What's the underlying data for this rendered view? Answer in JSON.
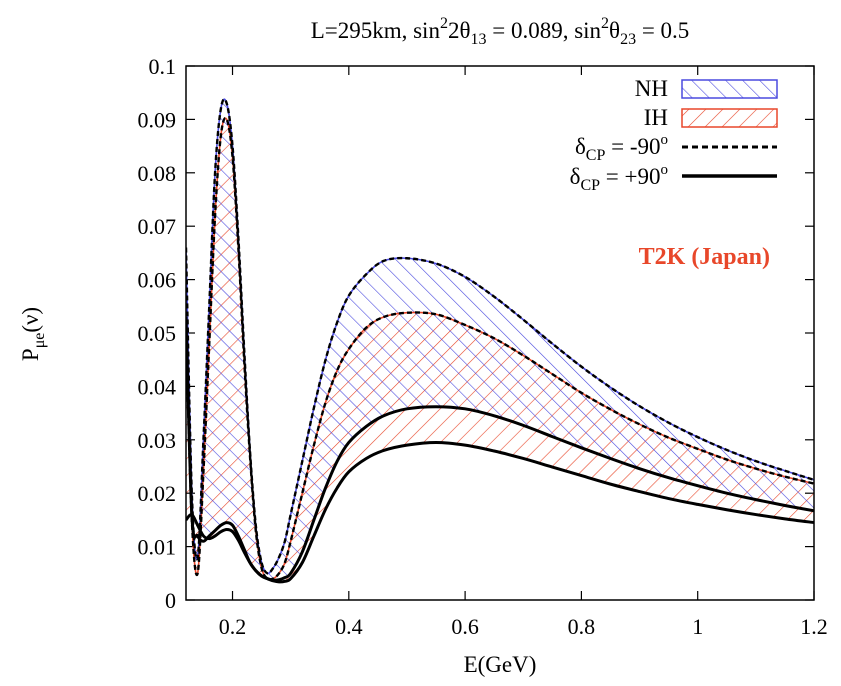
{
  "chart_data": {
    "type": "line",
    "title": {
      "prefix": "L=295km, sin",
      "sup1": "2",
      "part2": "2θ",
      "sub1": "13",
      "part3": " = 0.089, sin",
      "sup2": "2",
      "part4": "θ",
      "sub2": "23",
      "part5": " = 0.5"
    },
    "xlabel": "E(GeV)",
    "ylabel": {
      "main": "P",
      "sub": "μe",
      "suffix": "(ν)"
    },
    "xlim": [
      0.12,
      1.2
    ],
    "ylim": [
      0,
      0.1
    ],
    "xticks": [
      "0.2",
      "0.4",
      "0.6",
      "0.8",
      "1",
      "1.2"
    ],
    "yticks": [
      "0",
      "0.01",
      "0.02",
      "0.03",
      "0.04",
      "0.05",
      "0.06",
      "0.07",
      "0.08",
      "0.09",
      "0.1"
    ],
    "annotation": {
      "text": "T2K (Japan)",
      "color": "#e8472a"
    },
    "colors": {
      "NH": "#4a4adf",
      "IH": "#e8472a",
      "dashed": "#000000",
      "solid": "#000000"
    },
    "legend": {
      "position": "top-right",
      "entries": [
        {
          "label": "NH",
          "style": "hatch-NH"
        },
        {
          "label": "IH",
          "style": "hatch-IH"
        },
        {
          "label_main": "δ",
          "label_sub": "CP",
          "label_rest": " = -90",
          "label_sup": "o",
          "style": "dashed"
        },
        {
          "label_main": "δ",
          "label_sub": "CP",
          "label_rest": " = +90",
          "label_sup": "o",
          "style": "solid"
        }
      ]
    },
    "x": [
      0.12,
      0.13,
      0.14,
      0.15,
      0.16,
      0.17,
      0.18,
      0.19,
      0.2,
      0.21,
      0.22,
      0.23,
      0.24,
      0.25,
      0.26,
      0.27,
      0.28,
      0.29,
      0.3,
      0.32,
      0.34,
      0.36,
      0.38,
      0.4,
      0.43,
      0.46,
      0.5,
      0.55,
      0.6,
      0.65,
      0.7,
      0.75,
      0.8,
      0.85,
      0.9,
      0.95,
      1.0,
      1.05,
      1.1,
      1.15,
      1.2
    ],
    "series": [
      {
        "name": "NH, δCP = -90°",
        "band": "NH",
        "line": "dashed",
        "values": [
          0.066,
          0.02,
          0.008,
          0.03,
          0.055,
          0.08,
          0.092,
          0.093,
          0.085,
          0.068,
          0.047,
          0.028,
          0.014,
          0.007,
          0.005,
          0.006,
          0.008,
          0.011,
          0.016,
          0.026,
          0.036,
          0.045,
          0.052,
          0.057,
          0.061,
          0.0635,
          0.064,
          0.063,
          0.0605,
          0.0568,
          0.0525,
          0.048,
          0.0437,
          0.0398,
          0.0363,
          0.0332,
          0.0305,
          0.0281,
          0.026,
          0.0242,
          0.0225
        ]
      },
      {
        "name": "IH, δCP = -90°",
        "band": "IH",
        "line": "dashed",
        "values": [
          0.05,
          0.015,
          0.005,
          0.024,
          0.048,
          0.072,
          0.087,
          0.09,
          0.083,
          0.066,
          0.045,
          0.027,
          0.013,
          0.006,
          0.004,
          0.004,
          0.005,
          0.007,
          0.011,
          0.02,
          0.029,
          0.037,
          0.043,
          0.047,
          0.051,
          0.053,
          0.0538,
          0.0535,
          0.0515,
          0.049,
          0.0458,
          0.0423,
          0.0388,
          0.0357,
          0.0329,
          0.0304,
          0.0283,
          0.0263,
          0.0246,
          0.0231,
          0.0218
        ]
      },
      {
        "name": "NH, δCP = +90°",
        "band": "NH",
        "line": "solid",
        "values": [
          0.053,
          0.016,
          0.012,
          0.011,
          0.012,
          0.013,
          0.014,
          0.0145,
          0.014,
          0.012,
          0.0095,
          0.007,
          0.0055,
          0.0045,
          0.004,
          0.0037,
          0.0038,
          0.0042,
          0.005,
          0.009,
          0.015,
          0.021,
          0.026,
          0.0295,
          0.0325,
          0.0345,
          0.0358,
          0.0362,
          0.0358,
          0.0345,
          0.0327,
          0.0306,
          0.0285,
          0.0265,
          0.0246,
          0.0229,
          0.0214,
          0.02,
          0.0188,
          0.0177,
          0.0167
        ]
      },
      {
        "name": "IH, δCP = +90°",
        "band": "IH",
        "line": "solid",
        "values": [
          0.015,
          0.016,
          0.014,
          0.012,
          0.0115,
          0.012,
          0.0128,
          0.0132,
          0.0128,
          0.0112,
          0.009,
          0.007,
          0.0055,
          0.0045,
          0.004,
          0.0036,
          0.0034,
          0.0035,
          0.004,
          0.007,
          0.012,
          0.017,
          0.021,
          0.024,
          0.0265,
          0.028,
          0.029,
          0.0295,
          0.029,
          0.0279,
          0.0265,
          0.0249,
          0.0233,
          0.0217,
          0.0203,
          0.019,
          0.0179,
          0.0169,
          0.016,
          0.0152,
          0.0145
        ]
      }
    ]
  }
}
